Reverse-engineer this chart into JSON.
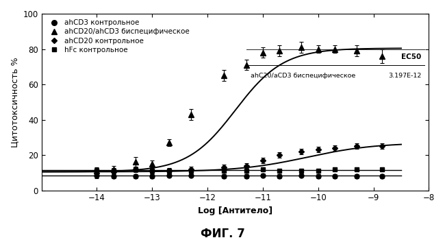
{
  "title": "ФИГ. 7",
  "xlabel": "Log [Антитело]",
  "ylabel": "Цитотоксичность %",
  "xlim": [
    -15,
    -8
  ],
  "ylim": [
    0,
    100
  ],
  "xticks": [
    -14,
    -13,
    -12,
    -11,
    -10,
    -9,
    -8
  ],
  "yticks": [
    0,
    20,
    40,
    60,
    80,
    100
  ],
  "ec50_log": -11.495,
  "legend_labels": [
    "ahCD3 контрольное",
    "ahCD20/ahCD3 биспецифическое",
    "ahCD20 контрольное",
    "hFc контрольное"
  ],
  "inset_label": "ahC20/aCD3 биспецифическое",
  "inset_ec50": "3.197E-12",
  "bispecific_x": [
    -14.0,
    -13.7,
    -13.3,
    -13.0,
    -12.7,
    -12.3,
    -11.7,
    -11.3,
    -11.0,
    -10.7,
    -10.3,
    -10.0,
    -9.7,
    -9.3,
    -8.85
  ],
  "bispecific_y": [
    11,
    12,
    16,
    15,
    27,
    43,
    65,
    71,
    78,
    79,
    81,
    80,
    80,
    79,
    76
  ],
  "bispecific_yerr": [
    2,
    2,
    3,
    2,
    2,
    3,
    3,
    3,
    3,
    3,
    3,
    2,
    2,
    3,
    4
  ],
  "ahcd3_x": [
    -14.0,
    -13.7,
    -13.3,
    -13.0,
    -12.7,
    -12.3,
    -11.7,
    -11.3,
    -11.0,
    -10.7,
    -10.3,
    -10.0,
    -9.7,
    -9.3,
    -8.85
  ],
  "ahcd3_y": [
    8.5,
    8,
    8,
    8,
    8.5,
    8.5,
    8,
    8,
    8.5,
    8,
    8.5,
    8,
    8,
    8,
    8
  ],
  "ahcd3_yerr": [
    1.5,
    1.0,
    1.0,
    1.0,
    1.0,
    1.0,
    1.0,
    1.0,
    1.0,
    1.0,
    1.0,
    1.0,
    1.0,
    1.0,
    1.0
  ],
  "ahcd20_x": [
    -14.0,
    -13.7,
    -13.3,
    -13.0,
    -12.7,
    -12.3,
    -11.7,
    -11.3,
    -11.0,
    -10.7,
    -10.3,
    -10.0,
    -9.7,
    -9.3,
    -8.85
  ],
  "ahcd20_y": [
    11,
    11,
    12,
    11,
    11,
    12,
    13,
    14,
    17,
    20,
    22,
    23,
    24,
    25,
    25
  ],
  "ahcd20_yerr": [
    1.5,
    1.5,
    1.5,
    1.5,
    1.5,
    1.5,
    1.5,
    1.5,
    1.5,
    1.5,
    1.5,
    1.5,
    1.5,
    1.5,
    1.5
  ],
  "hfc_x": [
    -14.0,
    -13.7,
    -13.3,
    -13.0,
    -12.7,
    -12.3,
    -11.7,
    -11.3,
    -11.0,
    -10.7,
    -10.3,
    -10.0,
    -9.7,
    -9.3,
    -8.85
  ],
  "hfc_y": [
    11,
    11,
    12,
    11,
    11,
    11,
    11,
    11,
    12,
    11,
    11,
    11,
    12,
    12,
    12
  ],
  "hfc_yerr": [
    1.5,
    1.0,
    1.0,
    1.0,
    1.0,
    1.0,
    1.0,
    1.0,
    1.0,
    1.0,
    1.0,
    1.0,
    1.0,
    1.0,
    1.0
  ],
  "background": "#ffffff"
}
